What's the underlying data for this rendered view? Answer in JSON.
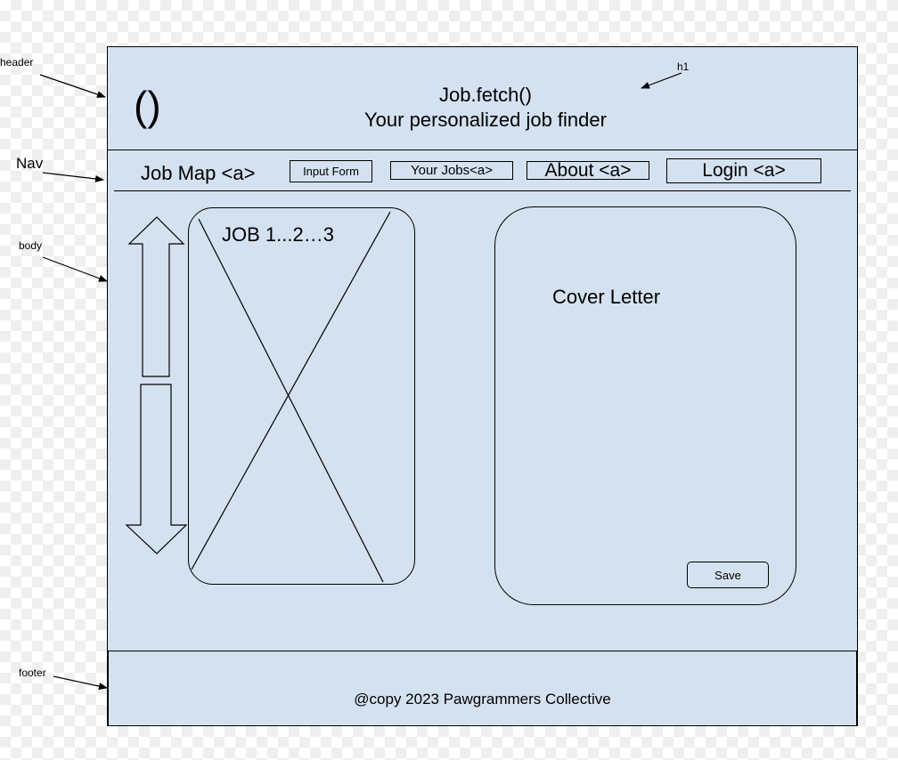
{
  "annotations": {
    "header": "header",
    "nav": "Nav",
    "body": "body",
    "footer": "footer",
    "h1": "h1"
  },
  "header": {
    "logo": "()",
    "title": "Job.fetch()",
    "subtitle": "Your personalized job finder"
  },
  "nav": {
    "job_map": "Job Map <a>",
    "input_form": "Input Form",
    "your_jobs": "Your Jobs<a>",
    "about": "About <a>",
    "login": "Login <a>"
  },
  "main": {
    "job_panel_label": "JOB 1...2…3",
    "cover_letter_label": "Cover Letter",
    "save_label": "Save"
  },
  "footer": {
    "text": "@copy 2023 Pawgrammers Collective"
  }
}
